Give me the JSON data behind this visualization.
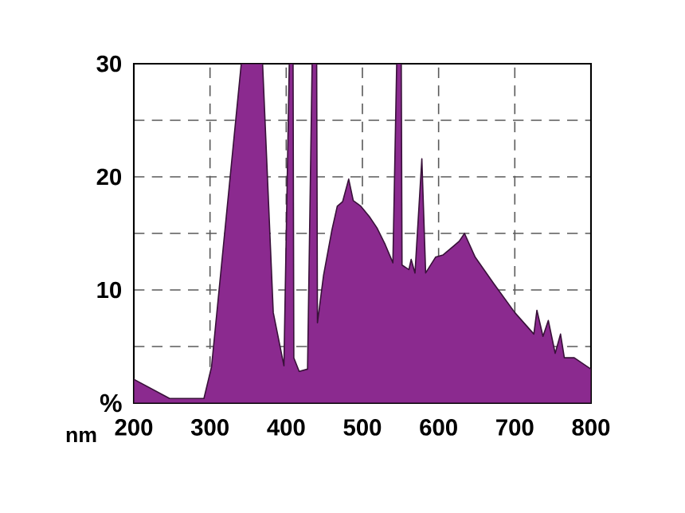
{
  "chart_data": {
    "type": "area",
    "xlabel": "nm",
    "ylabel": "%",
    "xlim": [
      200,
      800
    ],
    "xticks": [
      200,
      300,
      400,
      500,
      600,
      700,
      800
    ],
    "ylim": [
      0,
      30
    ],
    "yticks": [
      {
        "value": 5,
        "label": null
      },
      10,
      {
        "value": 15,
        "label": null
      },
      20,
      {
        "value": 25,
        "label": null
      },
      30
    ],
    "grid": true,
    "series": [
      {
        "color": "#8b2a8f",
        "x": [
          200,
          247,
          292,
          302,
          341,
          369,
          383,
          397,
          404,
          409,
          410,
          417,
          428,
          434,
          440,
          441,
          449,
          460,
          467,
          474,
          482,
          488,
          498,
          509,
          519,
          530,
          540,
          545,
          551,
          552,
          561,
          564,
          569,
          578,
          583,
          596,
          606,
          620,
          627,
          634,
          648,
          672,
          700,
          725,
          729,
          737,
          744,
          753,
          760,
          765,
          778,
          800
        ],
        "values": [
          2.1,
          0.4,
          0.4,
          3.2,
          30,
          30,
          8.0,
          3.3,
          30,
          30,
          4,
          2.8,
          3.0,
          30,
          30,
          7.1,
          11.3,
          15.3,
          17.4,
          17.8,
          19.8,
          17.9,
          17.4,
          16.5,
          15.5,
          14,
          12.4,
          30,
          30,
          12.2,
          11.8,
          12.7,
          11.5,
          21.6,
          11.5,
          12.9,
          13.1,
          13.9,
          14.3,
          15.0,
          12.9,
          10.6,
          8.0,
          6.1,
          8.2,
          5.9,
          7.3,
          4.4,
          6.1,
          4.0,
          4.0,
          3.0
        ]
      }
    ]
  }
}
